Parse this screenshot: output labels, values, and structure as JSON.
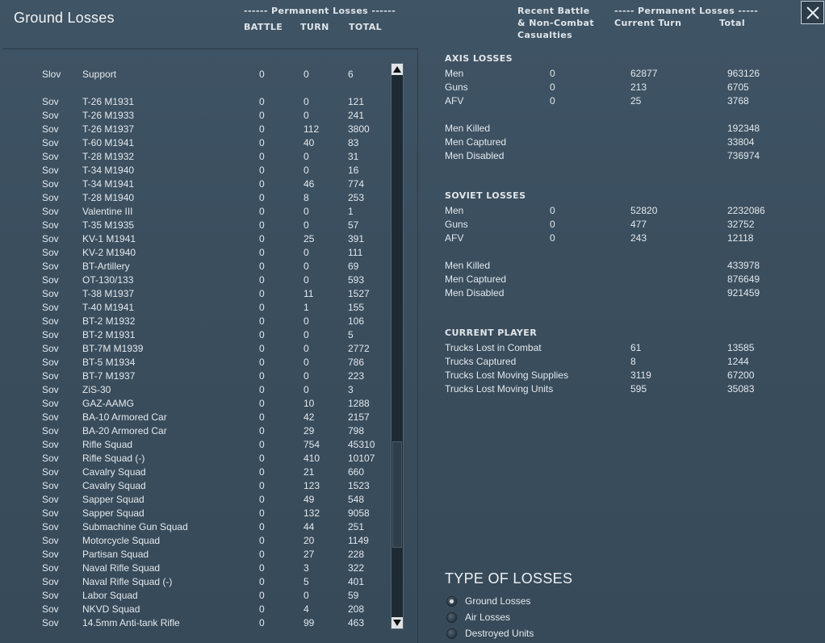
{
  "window": {
    "title": "Ground Losses"
  },
  "left_header": {
    "group": "------ Permanent Losses ------",
    "battle": "BATTLE",
    "turn": "TURN",
    "total": "TOTAL"
  },
  "right_header": {
    "recent_line1": "Recent Battle",
    "recent_line2": "& Non-Combat",
    "recent_line3": "Casualties",
    "group": "----- Permanent Losses -----",
    "current_turn": "Current Turn",
    "total": "Total"
  },
  "rows": [
    {
      "nat": "Slov",
      "type": "Support",
      "battle": "0",
      "turn": "0",
      "total": "6"
    },
    {
      "nat": "",
      "type": "",
      "battle": "",
      "turn": "",
      "total": ""
    },
    {
      "nat": "Sov",
      "type": "T-26 M1931",
      "battle": "0",
      "turn": "0",
      "total": "121"
    },
    {
      "nat": "Sov",
      "type": "T-26 M1933",
      "battle": "0",
      "turn": "0",
      "total": "241"
    },
    {
      "nat": "Sov",
      "type": "T-26 M1937",
      "battle": "0",
      "turn": "112",
      "total": "3800"
    },
    {
      "nat": "Sov",
      "type": "T-60 M1941",
      "battle": "0",
      "turn": "40",
      "total": "83"
    },
    {
      "nat": "Sov",
      "type": "T-28 M1932",
      "battle": "0",
      "turn": "0",
      "total": "31"
    },
    {
      "nat": "Sov",
      "type": "T-34 M1940",
      "battle": "0",
      "turn": "0",
      "total": "16"
    },
    {
      "nat": "Sov",
      "type": "T-34 M1941",
      "battle": "0",
      "turn": "46",
      "total": "774"
    },
    {
      "nat": "Sov",
      "type": "T-28 M1940",
      "battle": "0",
      "turn": "8",
      "total": "253"
    },
    {
      "nat": "Sov",
      "type": "Valentine III",
      "battle": "0",
      "turn": "0",
      "total": "1"
    },
    {
      "nat": "Sov",
      "type": "T-35 M1935",
      "battle": "0",
      "turn": "0",
      "total": "57"
    },
    {
      "nat": "Sov",
      "type": "KV-1 M1941",
      "battle": "0",
      "turn": "25",
      "total": "391"
    },
    {
      "nat": "Sov",
      "type": "KV-2 M1940",
      "battle": "0",
      "turn": "0",
      "total": "111"
    },
    {
      "nat": "Sov",
      "type": "BT-Artillery",
      "battle": "0",
      "turn": "0",
      "total": "69"
    },
    {
      "nat": "Sov",
      "type": "OT-130/133",
      "battle": "0",
      "turn": "0",
      "total": "593"
    },
    {
      "nat": "Sov",
      "type": "T-38 M1937",
      "battle": "0",
      "turn": "11",
      "total": "1527"
    },
    {
      "nat": "Sov",
      "type": "T-40 M1941",
      "battle": "0",
      "turn": "1",
      "total": "155"
    },
    {
      "nat": "Sov",
      "type": "BT-2 M1932",
      "battle": "0",
      "turn": "0",
      "total": "106"
    },
    {
      "nat": "Sov",
      "type": "BT-2 M1931",
      "battle": "0",
      "turn": "0",
      "total": "5"
    },
    {
      "nat": "Sov",
      "type": "BT-7M M1939",
      "battle": "0",
      "turn": "0",
      "total": "2772"
    },
    {
      "nat": "Sov",
      "type": "BT-5 M1934",
      "battle": "0",
      "turn": "0",
      "total": "786"
    },
    {
      "nat": "Sov",
      "type": "BT-7 M1937",
      "battle": "0",
      "turn": "0",
      "total": "223"
    },
    {
      "nat": "Sov",
      "type": "ZiS-30",
      "battle": "0",
      "turn": "0",
      "total": "3"
    },
    {
      "nat": "Sov",
      "type": "GAZ-AAMG",
      "battle": "0",
      "turn": "10",
      "total": "1288"
    },
    {
      "nat": "Sov",
      "type": "BA-10 Armored Car",
      "battle": "0",
      "turn": "42",
      "total": "2157"
    },
    {
      "nat": "Sov",
      "type": "BA-20 Armored Car",
      "battle": "0",
      "turn": "29",
      "total": "798"
    },
    {
      "nat": "Sov",
      "type": "Rifle Squad",
      "battle": "0",
      "turn": "754",
      "total": "45310"
    },
    {
      "nat": "Sov",
      "type": "Rifle Squad (-)",
      "battle": "0",
      "turn": "410",
      "total": "10107"
    },
    {
      "nat": "Sov",
      "type": "Cavalry Squad",
      "battle": "0",
      "turn": "21",
      "total": "660"
    },
    {
      "nat": "Sov",
      "type": "Cavalry Squad",
      "battle": "0",
      "turn": "123",
      "total": "1523"
    },
    {
      "nat": "Sov",
      "type": "Sapper Squad",
      "battle": "0",
      "turn": "49",
      "total": "548"
    },
    {
      "nat": "Sov",
      "type": "Sapper Squad",
      "battle": "0",
      "turn": "132",
      "total": "9058"
    },
    {
      "nat": "Sov",
      "type": "Submachine Gun Squad",
      "battle": "0",
      "turn": "44",
      "total": "251"
    },
    {
      "nat": "Sov",
      "type": "Motorcycle Squad",
      "battle": "0",
      "turn": "20",
      "total": "1149"
    },
    {
      "nat": "Sov",
      "type": "Partisan Squad",
      "battle": "0",
      "turn": "27",
      "total": "228"
    },
    {
      "nat": "Sov",
      "type": "Naval Rifle Squad",
      "battle": "0",
      "turn": "3",
      "total": "322"
    },
    {
      "nat": "Sov",
      "type": "Naval Rifle Squad (-)",
      "battle": "0",
      "turn": "5",
      "total": "401"
    },
    {
      "nat": "Sov",
      "type": "Labor Squad",
      "battle": "0",
      "turn": "0",
      "total": "59"
    },
    {
      "nat": "Sov",
      "type": "NKVD Squad",
      "battle": "0",
      "turn": "4",
      "total": "208"
    },
    {
      "nat": "Sov",
      "type": "14.5mm Anti-tank Rifle",
      "battle": "0",
      "turn": "99",
      "total": "463"
    }
  ],
  "axis": {
    "title": "AXIS LOSSES",
    "men": {
      "label": "Men",
      "battle": "0",
      "current": "62877",
      "total": "963126"
    },
    "guns": {
      "label": "Guns",
      "battle": "0",
      "current": "213",
      "total": "6705"
    },
    "afv": {
      "label": "AFV",
      "battle": "0",
      "current": "25",
      "total": "3768"
    },
    "killed": {
      "label": "Men Killed",
      "total": "192348"
    },
    "captured": {
      "label": "Men Captured",
      "total": "33804"
    },
    "disabled": {
      "label": "Men Disabled",
      "total": "736974"
    }
  },
  "soviet": {
    "title": "SOVIET LOSSES",
    "men": {
      "label": "Men",
      "battle": "0",
      "current": "52820",
      "total": "2232086"
    },
    "guns": {
      "label": "Guns",
      "battle": "0",
      "current": "477",
      "total": "32752"
    },
    "afv": {
      "label": "AFV",
      "battle": "0",
      "current": "243",
      "total": "12118"
    },
    "killed": {
      "label": "Men Killed",
      "total": "433978"
    },
    "captured": {
      "label": "Men Captured",
      "total": "876649"
    },
    "disabled": {
      "label": "Men Disabled",
      "total": "921459"
    }
  },
  "player": {
    "title": "CURRENT PLAYER",
    "combat": {
      "label": "Trucks Lost in Combat",
      "current": "61",
      "total": "13585"
    },
    "captured": {
      "label": "Trucks Captured",
      "current": "8",
      "total": "1244"
    },
    "supplies": {
      "label": "Trucks Lost Moving Supplies",
      "current": "3119",
      "total": "67200"
    },
    "units": {
      "label": "Trucks Lost Moving Units",
      "current": "595",
      "total": "35083"
    }
  },
  "type_of_losses": {
    "title": "TYPE OF LOSSES",
    "options": [
      "Ground Losses",
      "Air Losses",
      "Destroyed Units"
    ],
    "selected": "Ground Losses"
  },
  "icons": {
    "close": "close-icon",
    "scroll_up": "arrow-up-icon",
    "scroll_down": "arrow-down-icon"
  }
}
